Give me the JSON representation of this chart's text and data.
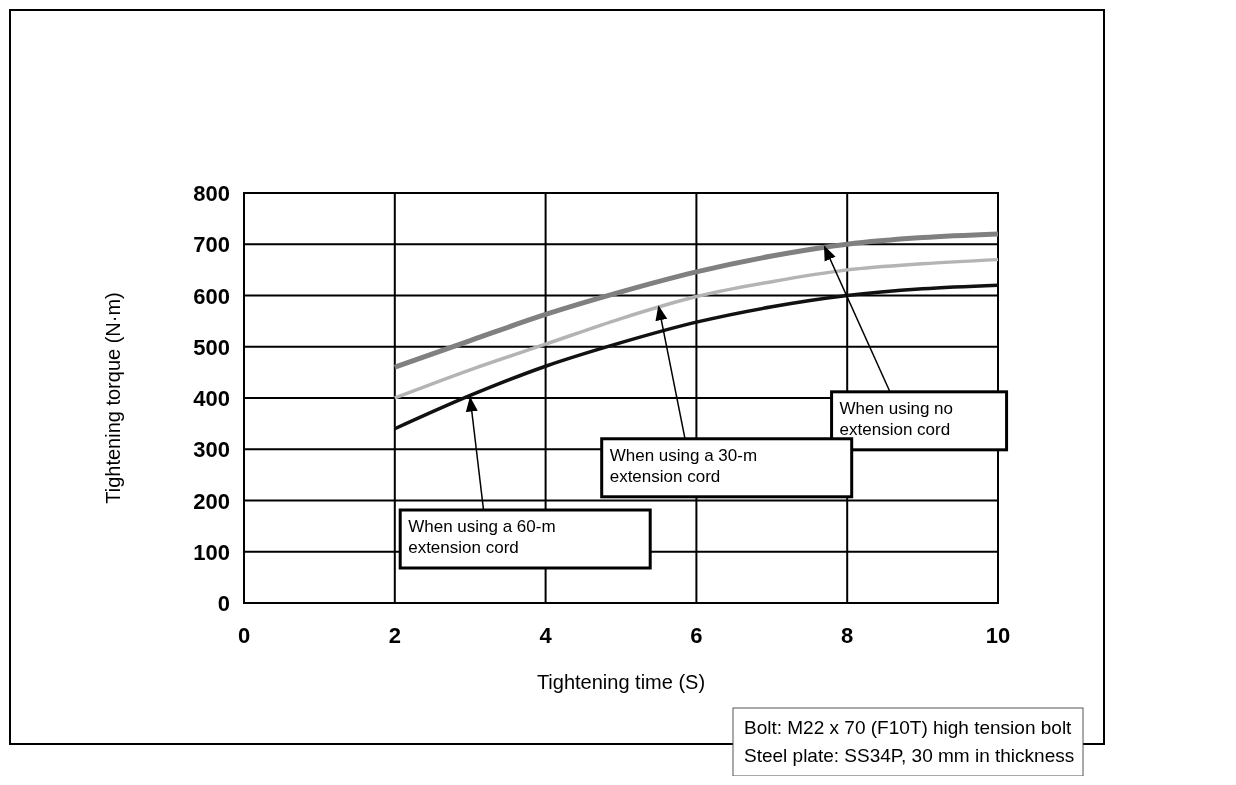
{
  "chart_data": {
    "type": "line",
    "xlabel": "Tightening time (S)",
    "ylabel": "Tightening torque (N·m)",
    "xlim": [
      0,
      10
    ],
    "xticks": [
      0,
      2,
      4,
      6,
      8,
      10
    ],
    "ylim": [
      0,
      800
    ],
    "yticks": [
      0,
      100,
      200,
      300,
      400,
      500,
      600,
      700,
      800
    ],
    "grid": true,
    "marker": "none",
    "series": [
      {
        "color": "#808080",
        "x": [
          2,
          3,
          4,
          5,
          6,
          7,
          8,
          9,
          10
        ],
        "values": [
          460,
          512,
          563,
          607,
          646,
          677,
          700,
          713,
          720
        ]
      },
      {
        "color": "#b4b4b4",
        "x": [
          2,
          3,
          4,
          5,
          6,
          7,
          8,
          9,
          10
        ],
        "values": [
          400,
          455,
          505,
          555,
          598,
          627,
          650,
          662,
          670
        ]
      },
      {
        "color": "#111111",
        "x": [
          2,
          3,
          4,
          5,
          6,
          7,
          8,
          9,
          10
        ],
        "values": [
          340,
          405,
          462,
          508,
          548,
          578,
          600,
          613,
          620
        ]
      }
    ],
    "annotations": [
      {
        "text": "When using no extension cord",
        "x": 7.7,
        "y": 695
      },
      {
        "text": "When using a 30-m extension cord",
        "x": 5.5,
        "y": 578
      },
      {
        "text": "When using a 60-m extension cord",
        "x": 3,
        "y": 400
      },
      "Bolt: M22 x 70 (F10T) high tension bolt",
      "Steel plate: SS34P, 30 mm in thickness"
    ]
  }
}
